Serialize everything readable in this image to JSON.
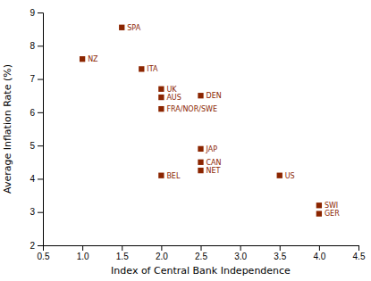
{
  "chart_data": {
    "type": "scatter",
    "xlabel": "Index of Central Bank Independence",
    "ylabel": "Average Inflation Rate (%)",
    "labels": [
      "NZ",
      "SPA",
      "ITA",
      "UK",
      "AUS",
      "FRA/NOR/SWE",
      "DEN",
      "BEL",
      "JAP",
      "CAN",
      "NET",
      "US",
      "SWI",
      "GER"
    ],
    "x": [
      1.0,
      1.5,
      1.75,
      2.0,
      2.0,
      2.0,
      2.5,
      2.0,
      2.5,
      2.5,
      2.5,
      3.5,
      4.0,
      4.0
    ],
    "values": [
      7.6,
      8.55,
      7.3,
      6.7,
      6.45,
      6.1,
      6.5,
      4.1,
      4.9,
      4.5,
      4.25,
      4.1,
      3.2,
      2.95
    ],
    "color": "#8B2500",
    "marker": "square",
    "xlim": [
      0.5,
      4.5
    ],
    "ylim": [
      2.0,
      9.0
    ],
    "xticks": [
      0.5,
      {
        "value": 1,
        "label": "1.0"
      },
      1.5,
      {
        "value": 2,
        "label": "2.0"
      },
      2.5,
      {
        "value": 3,
        "label": "3.0"
      },
      3.5,
      {
        "value": 4,
        "label": "4.0"
      },
      4.5
    ],
    "yticks": [
      2,
      3,
      4,
      5,
      6,
      7,
      8,
      9
    ],
    "grid": false
  }
}
